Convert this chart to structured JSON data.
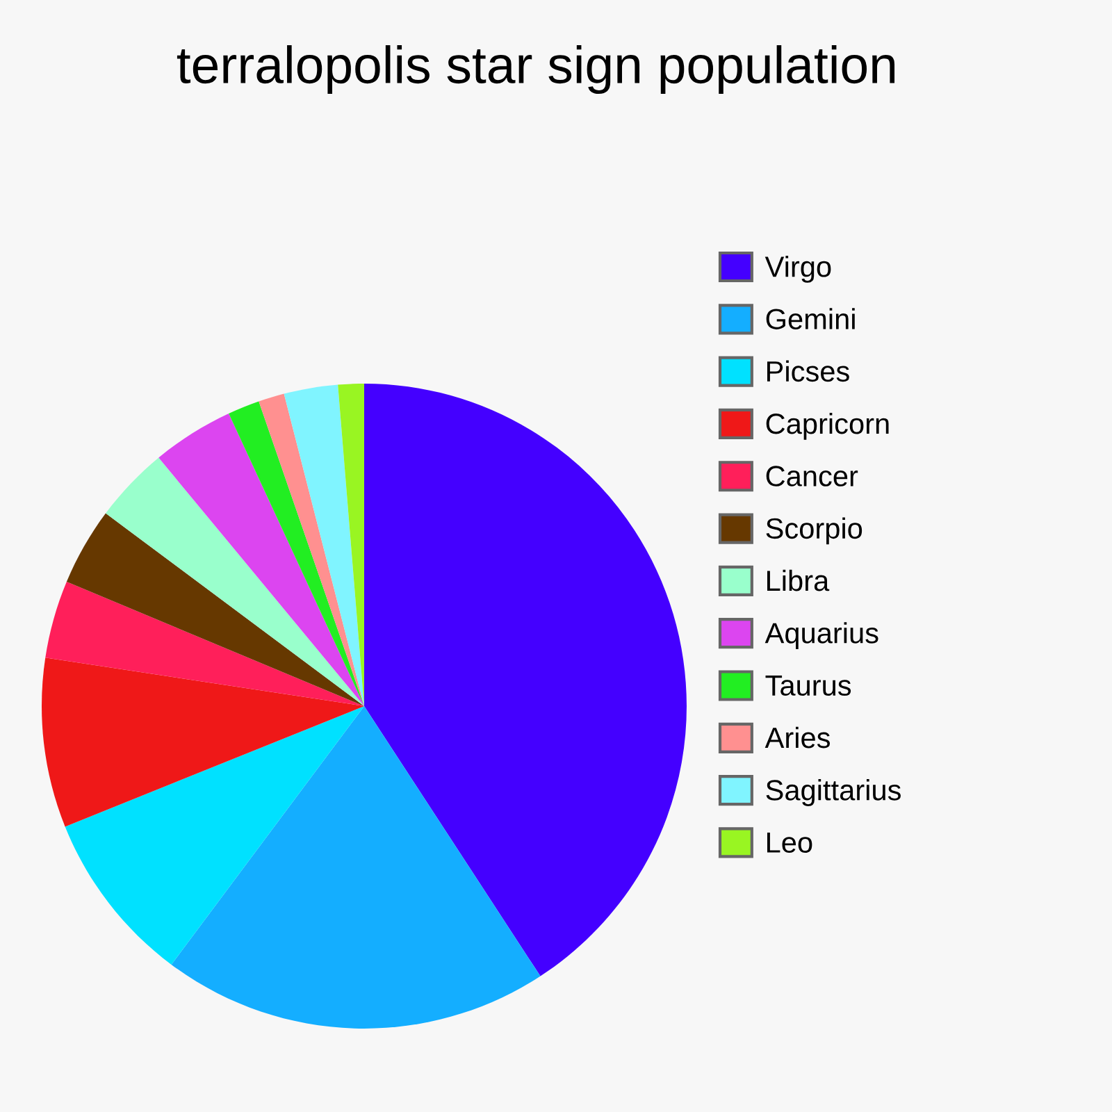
{
  "chart_data": {
    "type": "pie",
    "title": "terralopolis star sign population",
    "categories": [
      "Virgo",
      "Gemini",
      "Picses",
      "Capricorn",
      "Cancer",
      "Scorpio",
      "Libra",
      "Aquarius",
      "Taurus",
      "Aries",
      "Sagittarius",
      "Leo"
    ],
    "values": [
      40.8,
      19.4,
      8.7,
      8.5,
      3.9,
      3.9,
      3.8,
      4.1,
      1.6,
      1.3,
      2.7,
      1.3
    ],
    "colors": [
      "#4400ff",
      "#14aeff",
      "#00e1ff",
      "#ef1818",
      "#ff1f5a",
      "#663800",
      "#99ffcc",
      "#dc45f0",
      "#22ee22",
      "#ff9090",
      "#80f4ff",
      "#99f522"
    ],
    "legend": "right"
  }
}
